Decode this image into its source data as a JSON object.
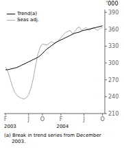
{
  "chart_data": {
    "type": "line",
    "x": [
      0,
      0.5,
      1,
      1.5,
      2,
      2.5,
      3,
      3.5,
      4,
      4.5,
      5,
      5.5,
      6,
      6.5,
      7,
      7.5,
      8,
      8.5,
      9,
      9.5,
      10,
      10.5,
      11,
      11.5,
      12,
      12.5,
      13,
      13.5,
      14,
      14.5,
      15,
      15.5,
      16,
      16.5,
      17,
      17.5,
      18,
      18.5,
      19,
      19.5,
      20,
      20.5,
      21
    ],
    "xlim": [
      -0.3,
      21.5
    ],
    "xticks": [
      {
        "value": 0,
        "label": "F"
      },
      {
        "value": 5,
        "label": "J"
      },
      {
        "value": 8,
        "label": "O"
      },
      {
        "value": 12,
        "label": "F"
      },
      {
        "value": 17,
        "label": "J"
      },
      {
        "value": 21,
        "label": "O"
      }
    ],
    "ylim": [
      210,
      395
    ],
    "yticks": [
      210,
      240,
      270,
      300,
      330,
      360,
      390
    ],
    "y_label": "'000",
    "annotations": [
      "2003",
      "2004"
    ],
    "footnote": "(a) Break in trend series from December\n     2003.",
    "legend": "upper left",
    "grid": false,
    "series": [
      {
        "name": "Trend(a)",
        "color": "#000000",
        "values": [
          288,
          288,
          289,
          290,
          291,
          292,
          294,
          296,
          298,
          300,
          302,
          304,
          306,
          308,
          310,
          313,
          317,
          321,
          325,
          328,
          331,
          334,
          337,
          339,
          341,
          343,
          345,
          347,
          349,
          351,
          353,
          354,
          355,
          357,
          358,
          359,
          360,
          361,
          362,
          363,
          364,
          365,
          366
        ]
      },
      {
        "name": "Seas adj.",
        "color": "#aaaaaa",
        "values": [
          293,
          285,
          272,
          258,
          248,
          242,
          239,
          237,
          236,
          238,
          243,
          255,
          272,
          295,
          315,
          328,
          334,
          333,
          332,
          335,
          338,
          335,
          337,
          340,
          345,
          350,
          354,
          356,
          358,
          352,
          356,
          362,
          364,
          358,
          361,
          363,
          358,
          360,
          363,
          360,
          358,
          362,
          363
        ]
      }
    ]
  }
}
